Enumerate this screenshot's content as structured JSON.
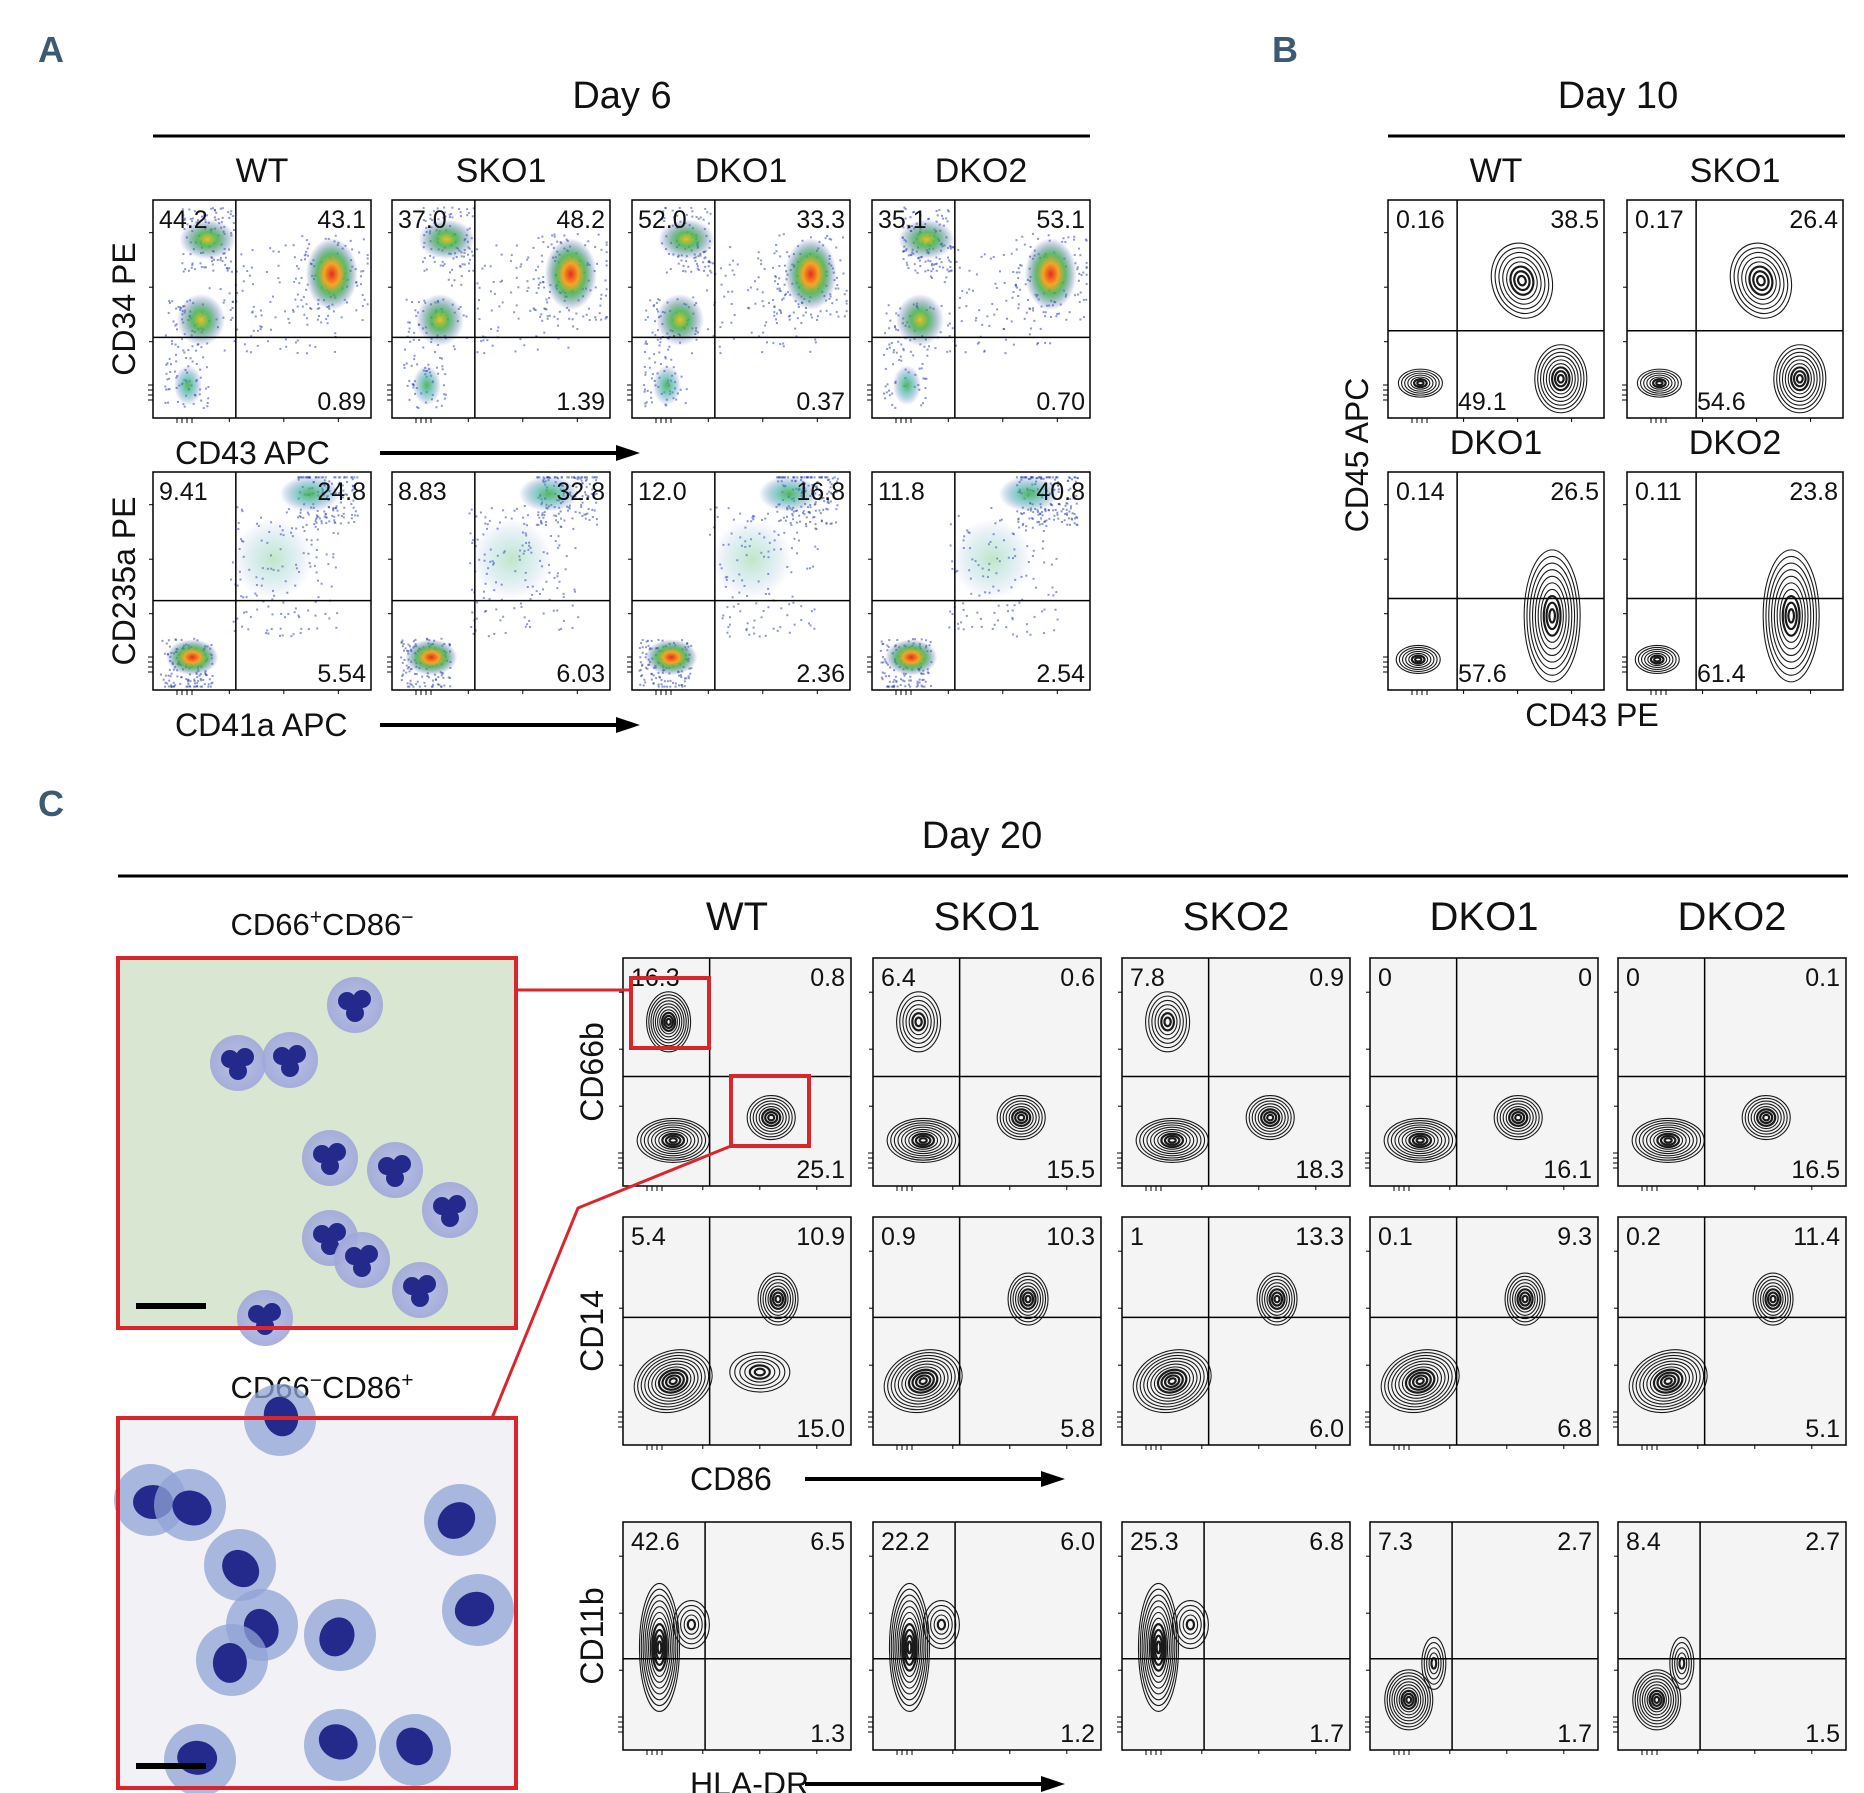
{
  "panel_a": {
    "letter": "A",
    "day": "Day 6",
    "samples": [
      "WT",
      "SKO1",
      "DKO1",
      "DKO2"
    ],
    "rows": [
      {
        "y_label": "CD34 PE",
        "x_label": "CD43 APC",
        "plots": [
          {
            "ul": "44.2",
            "ur": "43.1",
            "lr": "0.89"
          },
          {
            "ul": "37.0",
            "ur": "48.2",
            "lr": "1.39"
          },
          {
            "ul": "52.0",
            "ur": "33.3",
            "lr": "0.37"
          },
          {
            "ul": "35.1",
            "ur": "53.1",
            "lr": "0.70"
          }
        ]
      },
      {
        "y_label": "CD235a PE",
        "x_label": "CD41a APC",
        "plots": [
          {
            "ul": "9.41",
            "ur": "24.8",
            "lr": "5.54"
          },
          {
            "ul": "8.83",
            "ur": "32.8",
            "lr": "6.03"
          },
          {
            "ul": "12.0",
            "ur": "16.8",
            "lr": "2.36"
          },
          {
            "ul": "11.8",
            "ur": "40.8",
            "lr": "2.54"
          }
        ]
      }
    ]
  },
  "panel_b": {
    "letter": "B",
    "day": "Day 10",
    "y_label": "CD45 APC",
    "x_label": "CD43  PE",
    "plots": [
      {
        "sample": "WT",
        "ul": "0.16",
        "ur": "38.5",
        "ll": "49.1"
      },
      {
        "sample": "SKO1",
        "ul": "0.17",
        "ur": "26.4",
        "ll": "54.6"
      },
      {
        "sample": "DKO1",
        "ul": "0.14",
        "ur": "26.5",
        "ll": "57.6"
      },
      {
        "sample": "DKO2",
        "ul": "0.11",
        "ur": "23.8",
        "ll": "61.4"
      }
    ]
  },
  "panel_c": {
    "letter": "C",
    "day": "Day 20",
    "samples": [
      "WT",
      "SKO1",
      "SKO2",
      "DKO1",
      "DKO2"
    ],
    "cytospin": [
      {
        "label_main": "CD66",
        "sup1": "+",
        "label_mid": "CD86",
        "sup2": "−"
      },
      {
        "label_main": "CD66",
        "sup1": "−",
        "label_mid": "CD86",
        "sup2": "+"
      }
    ],
    "rows": [
      {
        "y_label": "CD66b",
        "x_label": "",
        "plots": [
          {
            "ul": "16.3",
            "ur": "0.8",
            "lr": "25.1"
          },
          {
            "ul": "6.4",
            "ur": "0.6",
            "lr": "15.5"
          },
          {
            "ul": "7.8",
            "ur": "0.9",
            "lr": "18.3"
          },
          {
            "ul": "0",
            "ur": "0",
            "lr": "16.1"
          },
          {
            "ul": "0",
            "ur": "0.1",
            "lr": "16.5"
          }
        ]
      },
      {
        "y_label": "CD14",
        "x_label": "CD86",
        "plots": [
          {
            "ul": "5.4",
            "ur": "10.9",
            "lr": "15.0"
          },
          {
            "ul": "0.9",
            "ur": "10.3",
            "lr": "5.8"
          },
          {
            "ul": "1",
            "ur": "13.3",
            "lr": "6.0"
          },
          {
            "ul": "0.1",
            "ur": "9.3",
            "lr": "6.8"
          },
          {
            "ul": "0.2",
            "ur": "11.4",
            "lr": "5.1"
          }
        ]
      },
      {
        "y_label": "CD11b",
        "x_label": "HLA-DR",
        "plots": [
          {
            "ul": "42.6",
            "ur": "6.5",
            "lr": "1.3"
          },
          {
            "ul": "22.2",
            "ur": "6.0",
            "lr": "1.2"
          },
          {
            "ul": "25.3",
            "ur": "6.8",
            "lr": "1.7"
          },
          {
            "ul": "7.3",
            "ur": "2.7",
            "lr": "1.7"
          },
          {
            "ul": "8.4",
            "ur": "2.7",
            "lr": "1.5"
          }
        ]
      }
    ]
  },
  "colors": {
    "panel_letter": "#3d5a73",
    "highlight_box": "#d9262c",
    "contour": "#1a1a1a",
    "contour_bg": "#f4f4f5",
    "density_low": "#2b3fb0",
    "density_mid": "#3fb04a",
    "density_high": "#e52b1f",
    "cytospin_top_bg": "#d8e6d2",
    "cytospin_bottom_bg": "#f1f1f6",
    "nucleus": "#242a8c"
  }
}
